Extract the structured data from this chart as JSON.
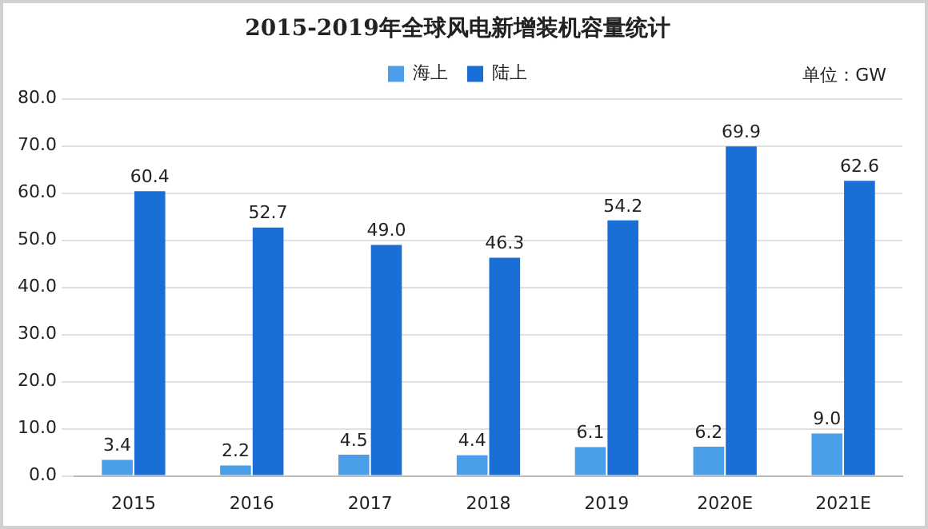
{
  "chart_data": {
    "type": "bar",
    "title": "2015-2019年全球风电新增装机容量统计",
    "categories": [
      "2015",
      "2016",
      "2017",
      "2018",
      "2019",
      "2020E",
      "2021E"
    ],
    "series": [
      {
        "name": "海上",
        "color": "#4a9fe8",
        "values": [
          3.4,
          2.2,
          4.5,
          4.4,
          6.1,
          6.2,
          9.0
        ],
        "value_labels": [
          "3.4",
          "2.2",
          "4.5",
          "4.4",
          "6.1",
          "6.2",
          "9.0"
        ]
      },
      {
        "name": "陆上",
        "color": "#1a6fd6",
        "values": [
          60.4,
          52.7,
          49.0,
          46.3,
          54.2,
          69.9,
          62.6
        ],
        "value_labels": [
          "60.4",
          "52.7",
          "49.0",
          "46.3",
          "54.2",
          "69.9",
          "62.6"
        ]
      }
    ],
    "ylim": [
      0,
      80
    ],
    "yticks": [
      {
        "value": 0,
        "label": "0.0"
      },
      {
        "value": 10,
        "label": "10.0"
      },
      {
        "value": 20,
        "label": "20.0"
      },
      {
        "value": 30,
        "label": "30.0"
      },
      {
        "value": 40,
        "label": "40.0"
      },
      {
        "value": 50,
        "label": "50.0"
      },
      {
        "value": 60,
        "label": "60.0"
      },
      {
        "value": 70,
        "label": "70.0"
      },
      {
        "value": 80,
        "label": "80.0"
      }
    ],
    "grid": "y",
    "legend": "top",
    "annotations": [
      "单位：GW"
    ]
  }
}
